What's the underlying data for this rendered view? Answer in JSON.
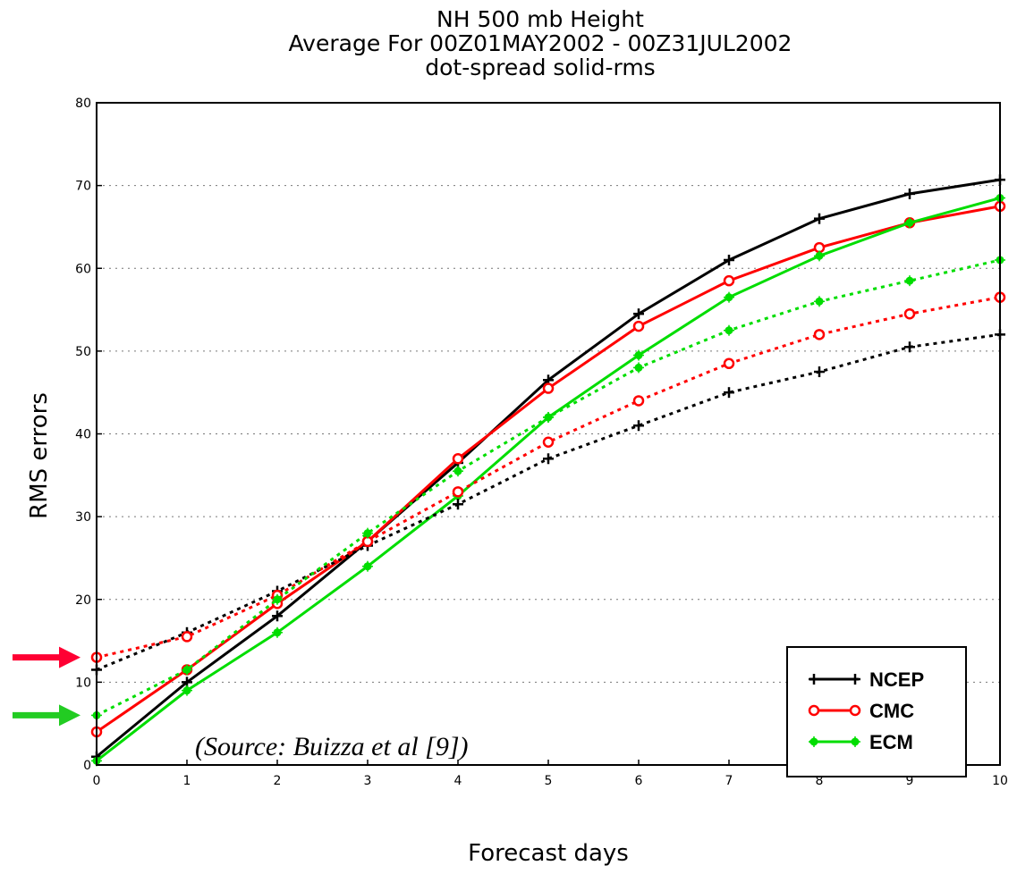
{
  "chart_data": {
    "type": "line",
    "title": [
      "NH 500 mb Height",
      "Average For 00Z01MAY2002 - 00Z31JUL2002",
      "dot-spread solid-rms"
    ],
    "xlabel": "Forecast days",
    "ylabel": "RMS errors",
    "xlim": [
      0,
      10
    ],
    "ylim": [
      0,
      80
    ],
    "xticks": [
      "0",
      "1",
      "2",
      "3",
      "4",
      "5",
      "6",
      "7",
      "8",
      "9",
      "10"
    ],
    "yticks": [
      "0",
      "10",
      "20",
      "30",
      "40",
      "50",
      "60",
      "70",
      "80"
    ],
    "grid": true,
    "legend_position": "bottom-right",
    "legend": [
      "NCEP",
      "CMC",
      "ECM"
    ],
    "x": [
      0,
      1,
      2,
      3,
      4,
      5,
      6,
      7,
      8,
      9,
      10
    ],
    "series": [
      {
        "name": "NCEP",
        "style": "solid",
        "color": "#000000",
        "marker": "plus",
        "values": [
          1,
          10,
          18,
          27,
          36.5,
          46.5,
          54.5,
          61,
          66,
          69,
          70.7
        ]
      },
      {
        "name": "CMC",
        "style": "solid",
        "color": "#ff0000",
        "marker": "circle",
        "values": [
          4,
          11.5,
          19.5,
          27,
          37,
          45.5,
          53,
          58.5,
          62.5,
          65.5,
          67.5
        ]
      },
      {
        "name": "ECM",
        "style": "solid",
        "color": "#00dd00",
        "marker": "asterisk",
        "values": [
          0.5,
          9,
          16,
          24,
          32.5,
          42,
          49.5,
          56.5,
          61.5,
          65.5,
          68.5
        ]
      },
      {
        "style": "dotted",
        "color": "#000000",
        "marker": "plus",
        "values": [
          11.5,
          16,
          21,
          26.5,
          31.5,
          37,
          41,
          45,
          47.5,
          50.5,
          52
        ]
      },
      {
        "style": "dotted",
        "color": "#ff0000",
        "marker": "circle",
        "values": [
          13,
          15.5,
          20.5,
          27,
          33,
          39,
          44,
          48.5,
          52,
          54.5,
          56.5
        ]
      },
      {
        "style": "dotted",
        "color": "#00dd00",
        "marker": "asterisk",
        "values": [
          6,
          11.5,
          20,
          28,
          35.5,
          42,
          48,
          52.5,
          56,
          58.5,
          61
        ]
      }
    ],
    "annotations": [
      {
        "text": "(Source: Buizza et al [9])"
      },
      {
        "type": "arrow",
        "color": "#ff0033",
        "points_at_y": 13
      },
      {
        "type": "arrow",
        "color": "#22cc22",
        "points_at_y": 6
      }
    ]
  }
}
